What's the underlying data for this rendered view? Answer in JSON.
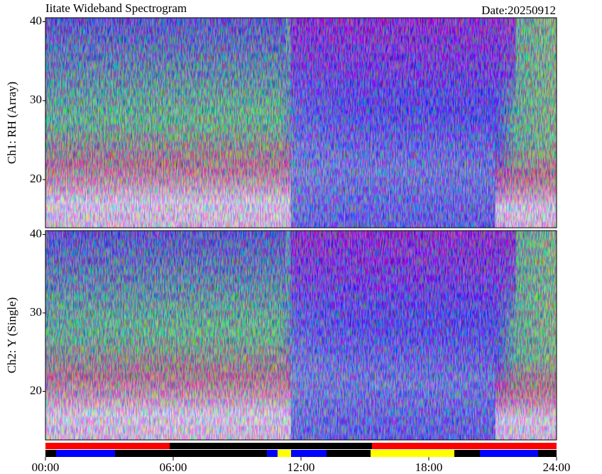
{
  "chart_data": [
    {
      "type": "spectrogram",
      "title": "Iitate Wideband Spectrogram",
      "subtitle": "Date:20250912",
      "ylabel": "Ch1: RH (Array)",
      "ylim": [
        13.9,
        40.5
      ],
      "yticks": [
        20,
        30,
        40
      ]
    },
    {
      "type": "spectrogram",
      "ylabel": "Ch2: Y (Single)",
      "ylim": [
        13.8,
        40.5
      ],
      "yticks": [
        20,
        30,
        40
      ],
      "xlim": [
        0,
        24
      ],
      "xticks": [
        {
          "value": 0,
          "label": "00:00"
        },
        {
          "value": 6,
          "label": "06:00"
        },
        {
          "value": 12,
          "label": "12:00"
        },
        {
          "value": 18,
          "label": "18:00"
        },
        {
          "value": 24,
          "label": "24:00"
        }
      ]
    }
  ]
}
